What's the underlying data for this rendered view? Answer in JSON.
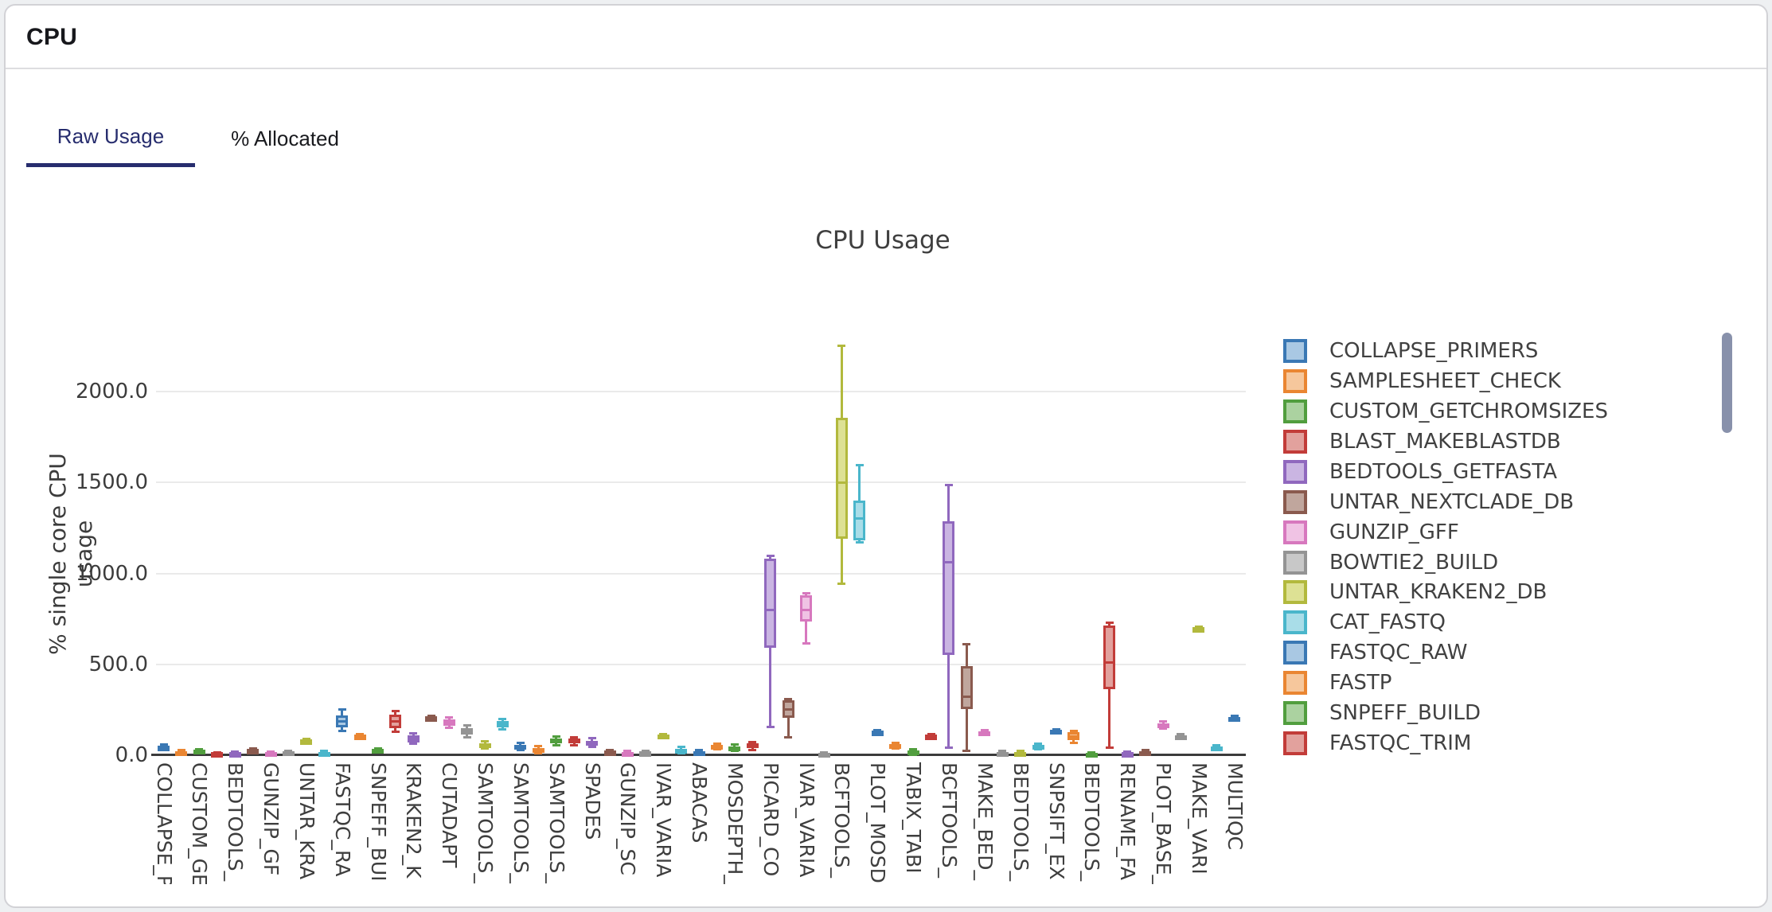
{
  "header": {
    "title": "CPU"
  },
  "tabs": [
    {
      "label": "Raw Usage",
      "active": true
    },
    {
      "label": "% Allocated",
      "active": false
    }
  ],
  "accent_color": "#272d6e",
  "scrollbar_color": "#8891ab",
  "chart_data": {
    "type": "box",
    "title": "CPU Usage",
    "xlabel": "",
    "ylabel": "% single core CPU usage",
    "ylim": [
      0,
      2300
    ],
    "grid": true,
    "legend_position": "right",
    "yticks": [
      {
        "value": 0,
        "label": "0.0"
      },
      {
        "value": 500,
        "label": "500.0"
      },
      {
        "value": 1000,
        "label": "1000.0"
      },
      {
        "value": 1500,
        "label": "1500.0"
      },
      {
        "value": 2000,
        "label": "2000.0"
      }
    ],
    "palette": [
      {
        "stroke": "#3a78b4",
        "fill": "#a9c8e3"
      },
      {
        "stroke": "#ea8632",
        "fill": "#f6c79c"
      },
      {
        "stroke": "#519e3e",
        "fill": "#abd2a0"
      },
      {
        "stroke": "#c23c39",
        "fill": "#e2a19d"
      },
      {
        "stroke": "#9068be",
        "fill": "#cab5e2"
      },
      {
        "stroke": "#8a5a4e",
        "fill": "#c0a69d"
      },
      {
        "stroke": "#d778be",
        "fill": "#f0c3e4"
      },
      {
        "stroke": "#949494",
        "fill": "#c8c8c8"
      },
      {
        "stroke": "#b2b93d",
        "fill": "#dde194"
      },
      {
        "stroke": "#4ab6cb",
        "fill": "#a9dde8"
      }
    ],
    "legend": [
      {
        "label": "COLLAPSE_PRIMERS",
        "color": 0
      },
      {
        "label": "SAMPLESHEET_CHECK",
        "color": 1
      },
      {
        "label": "CUSTOM_GETCHROMSIZES",
        "color": 2
      },
      {
        "label": "BLAST_MAKEBLASTDB",
        "color": 3
      },
      {
        "label": "BEDTOOLS_GETFASTA",
        "color": 4
      },
      {
        "label": "UNTAR_NEXTCLADE_DB",
        "color": 5
      },
      {
        "label": "GUNZIP_GFF",
        "color": 6
      },
      {
        "label": "BOWTIE2_BUILD",
        "color": 7
      },
      {
        "label": "UNTAR_KRAKEN2_DB",
        "color": 8
      },
      {
        "label": "CAT_FASTQ",
        "color": 9
      },
      {
        "label": "FASTQC_RAW",
        "color": 0
      },
      {
        "label": "FASTP",
        "color": 1
      },
      {
        "label": "SNPEFF_BUILD",
        "color": 2
      },
      {
        "label": "FASTQC_TRIM",
        "color": 3
      }
    ],
    "box_schema": [
      "low",
      "q1",
      "median",
      "q3",
      "high"
    ],
    "series": [
      {
        "label": "COLLAPSE_P",
        "color": 0,
        "values": [
          30,
          38,
          44,
          50,
          57
        ]
      },
      {
        "label": "",
        "color": 1,
        "values": [
          8,
          12,
          17,
          24,
          28
        ]
      },
      {
        "label": "CUSTOM_GE",
        "color": 2,
        "values": [
          18,
          21,
          25,
          29,
          33
        ]
      },
      {
        "label": "",
        "color": 3,
        "values": [
          3,
          6,
          9,
          12,
          16
        ]
      },
      {
        "label": "BEDTOOLS_",
        "color": 4,
        "values": [
          6,
          9,
          12,
          15,
          19
        ]
      },
      {
        "label": "",
        "color": 5,
        "values": [
          20,
          24,
          28,
          32,
          37
        ]
      },
      {
        "label": "GUNZIP_GF",
        "color": 6,
        "values": [
          7,
          10,
          13,
          16,
          20
        ]
      },
      {
        "label": "",
        "color": 7,
        "values": [
          11,
          14,
          17,
          21,
          25
        ]
      },
      {
        "label": "UNTAR_KRA",
        "color": 8,
        "values": [
          68,
          73,
          79,
          85,
          90
        ]
      },
      {
        "label": "",
        "color": 9,
        "values": [
          4,
          8,
          13,
          18,
          23
        ]
      },
      {
        "label": "FASTQC_RA",
        "color": 0,
        "values": [
          135,
          152,
          185,
          220,
          250
        ]
      },
      {
        "label": "",
        "color": 1,
        "values": [
          98,
          102,
          106,
          111,
          116
        ]
      },
      {
        "label": "SNPEFF_BUI",
        "color": 2,
        "values": [
          22,
          26,
          30,
          34,
          38
        ]
      },
      {
        "label": "",
        "color": 3,
        "values": [
          130,
          150,
          188,
          222,
          242
        ]
      },
      {
        "label": "KRAKEN2_K",
        "color": 4,
        "values": [
          62,
          72,
          88,
          108,
          122
        ]
      },
      {
        "label": "",
        "color": 5,
        "values": [
          198,
          202,
          206,
          211,
          216
        ]
      },
      {
        "label": "CUTADAPT",
        "color": 6,
        "values": [
          150,
          160,
          178,
          198,
          208
        ]
      },
      {
        "label": "",
        "color": 7,
        "values": [
          98,
          112,
          128,
          148,
          162
        ]
      },
      {
        "label": "SAMTOOLS_",
        "color": 8,
        "values": [
          38,
          46,
          56,
          66,
          76
        ]
      },
      {
        "label": "",
        "color": 9,
        "values": [
          142,
          152,
          168,
          188,
          200
        ]
      },
      {
        "label": "SAMTOOLS_",
        "color": 0,
        "values": [
          28,
          36,
          45,
          56,
          66
        ]
      },
      {
        "label": "",
        "color": 1,
        "values": [
          12,
          20,
          30,
          40,
          50
        ]
      },
      {
        "label": "SAMTOOLS_",
        "color": 2,
        "values": [
          55,
          65,
          78,
          92,
          105
        ]
      },
      {
        "label": "",
        "color": 3,
        "values": [
          55,
          64,
          76,
          90,
          100
        ]
      },
      {
        "label": "SPADES",
        "color": 4,
        "values": [
          46,
          56,
          66,
          80,
          92
        ]
      },
      {
        "label": "",
        "color": 5,
        "values": [
          8,
          13,
          18,
          24,
          30
        ]
      },
      {
        "label": "GUNZIP_SC",
        "color": 6,
        "values": [
          3,
          8,
          13,
          19,
          26
        ]
      },
      {
        "label": "",
        "color": 7,
        "values": [
          8,
          12,
          15,
          19,
          23
        ]
      },
      {
        "label": "IVAR_VARIA",
        "color": 8,
        "values": [
          98,
          103,
          108,
          113,
          118
        ]
      },
      {
        "label": "",
        "color": 9,
        "values": [
          12,
          18,
          26,
          36,
          44
        ]
      },
      {
        "label": "ABACAS",
        "color": 0,
        "values": [
          3,
          9,
          15,
          22,
          30
        ]
      },
      {
        "label": "",
        "color": 1,
        "values": [
          34,
          40,
          47,
          55,
          62
        ]
      },
      {
        "label": "MOSDEPTH_",
        "color": 2,
        "values": [
          25,
          32,
          40,
          49,
          57
        ]
      },
      {
        "label": "",
        "color": 3,
        "values": [
          30,
          45,
          55,
          67,
          74
        ]
      },
      {
        "label": "PICARD_CO",
        "color": 4,
        "values": [
          155,
          590,
          800,
          1080,
          1095
        ]
      },
      {
        "label": "",
        "color": 5,
        "values": [
          100,
          206,
          250,
          302,
          310
        ]
      },
      {
        "label": "IVAR_VARIA",
        "color": 6,
        "values": [
          615,
          735,
          800,
          880,
          890
        ]
      },
      {
        "label": "",
        "color": 7,
        "values": [
          2,
          5,
          8,
          11,
          14
        ]
      },
      {
        "label": "BCFTOOLS_",
        "color": 8,
        "values": [
          945,
          1190,
          1500,
          1855,
          2250
        ]
      },
      {
        "label": "",
        "color": 9,
        "values": [
          1170,
          1180,
          1300,
          1400,
          1595
        ]
      },
      {
        "label": "PLOT_MOSD",
        "color": 0,
        "values": [
          118,
          122,
          127,
          132,
          137
        ]
      },
      {
        "label": "",
        "color": 1,
        "values": [
          38,
          45,
          53,
          62,
          70
        ]
      },
      {
        "label": "TABIX_TABI",
        "color": 2,
        "values": [
          4,
          12,
          20,
          28,
          35
        ]
      },
      {
        "label": "",
        "color": 3,
        "values": [
          98,
          102,
          106,
          110,
          114
        ]
      },
      {
        "label": "BCFTOOLS_",
        "color": 4,
        "values": [
          40,
          550,
          1060,
          1285,
          1485
        ]
      },
      {
        "label": "",
        "color": 5,
        "values": [
          25,
          255,
          320,
          490,
          610
        ]
      },
      {
        "label": "MAKE_BED_",
        "color": 6,
        "values": [
          115,
          120,
          126,
          132,
          138
        ]
      },
      {
        "label": "",
        "color": 7,
        "values": [
          2,
          7,
          12,
          18,
          24
        ]
      },
      {
        "label": "BEDTOOLS_",
        "color": 8,
        "values": [
          2,
          7,
          12,
          18,
          24
        ]
      },
      {
        "label": "",
        "color": 9,
        "values": [
          33,
          40,
          48,
          57,
          65
        ]
      },
      {
        "label": "SNPSIFT_EX",
        "color": 0,
        "values": [
          124,
          128,
          133,
          139,
          144
        ]
      },
      {
        "label": "",
        "color": 1,
        "values": [
          68,
          85,
          105,
          125,
          132
        ]
      },
      {
        "label": "BEDTOOLS_",
        "color": 2,
        "values": [
          2,
          5,
          8,
          11,
          14
        ]
      },
      {
        "label": "",
        "color": 3,
        "values": [
          40,
          365,
          510,
          715,
          727
        ]
      },
      {
        "label": "RENAME_FA",
        "color": 4,
        "values": [
          2,
          6,
          10,
          15,
          20
        ]
      },
      {
        "label": "",
        "color": 5,
        "values": [
          8,
          12,
          17,
          23,
          29
        ]
      },
      {
        "label": "PLOT_BASE_",
        "color": 6,
        "values": [
          148,
          156,
          166,
          177,
          186
        ]
      },
      {
        "label": "",
        "color": 7,
        "values": [
          90,
          96,
          102,
          109,
          115
        ]
      },
      {
        "label": "MAKE_VARI",
        "color": 8,
        "values": [
          690,
          694,
          698,
          702,
          706
        ]
      },
      {
        "label": "",
        "color": 9,
        "values": [
          28,
          34,
          41,
          48,
          55
        ]
      },
      {
        "label": "MULTIQC",
        "color": 0,
        "values": [
          190,
          196,
          202,
          209,
          215
        ]
      }
    ]
  }
}
